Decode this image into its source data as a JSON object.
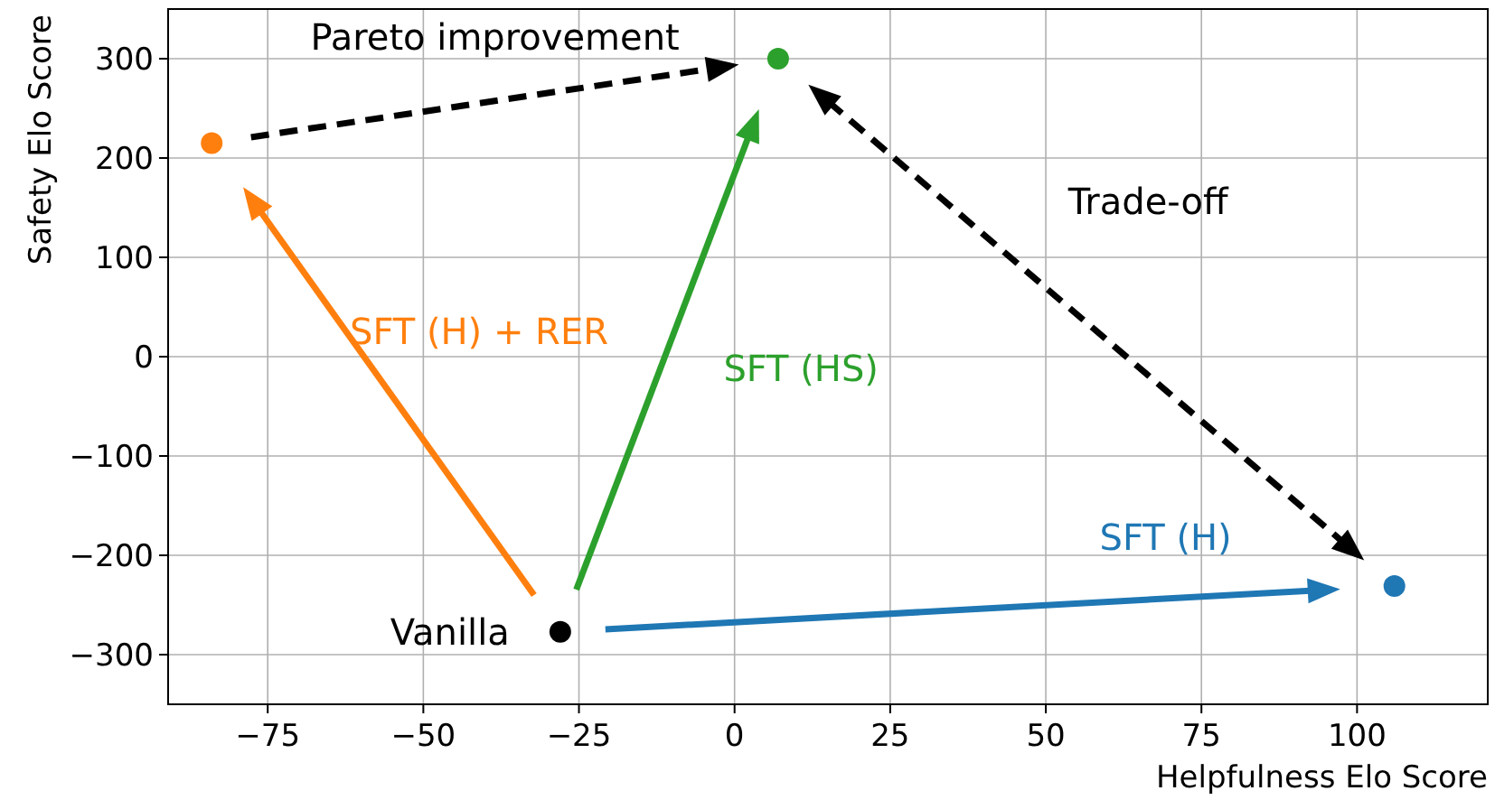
{
  "chart_data": {
    "type": "scatter",
    "xlabel": "Helpfulness Elo Score",
    "ylabel": "Safety Elo Score",
    "xlim": [
      -91,
      121
    ],
    "ylim": [
      -350,
      350
    ],
    "xticks": [
      {
        "value": -75,
        "label": "−75"
      },
      {
        "value": -50,
        "label": "−50"
      },
      {
        "value": -25,
        "label": "−25"
      },
      0,
      25,
      50,
      75,
      100
    ],
    "yticks": [
      {
        "value": -300,
        "label": "−300"
      },
      {
        "value": -200,
        "label": "−200"
      },
      {
        "value": -100,
        "label": "−100"
      },
      0,
      100,
      200,
      300
    ],
    "grid": true,
    "marker": "circle",
    "series": [
      {
        "name": "Vanilla",
        "color": "#000000",
        "x": [
          -28
        ],
        "values": [
          -277
        ]
      },
      {
        "name": "SFT (H) + RER",
        "color": "#ff7f0e",
        "x": [
          -84
        ],
        "values": [
          215
        ]
      },
      {
        "name": "SFT (HS)",
        "color": "#2ca02c",
        "x": [
          7
        ],
        "values": [
          300
        ]
      },
      {
        "name": "SFT (H)",
        "color": "#1f77b4",
        "x": [
          106
        ],
        "values": [
          -231
        ]
      }
    ],
    "annotations": [
      "Pareto improvement",
      "Trade-off"
    ]
  }
}
